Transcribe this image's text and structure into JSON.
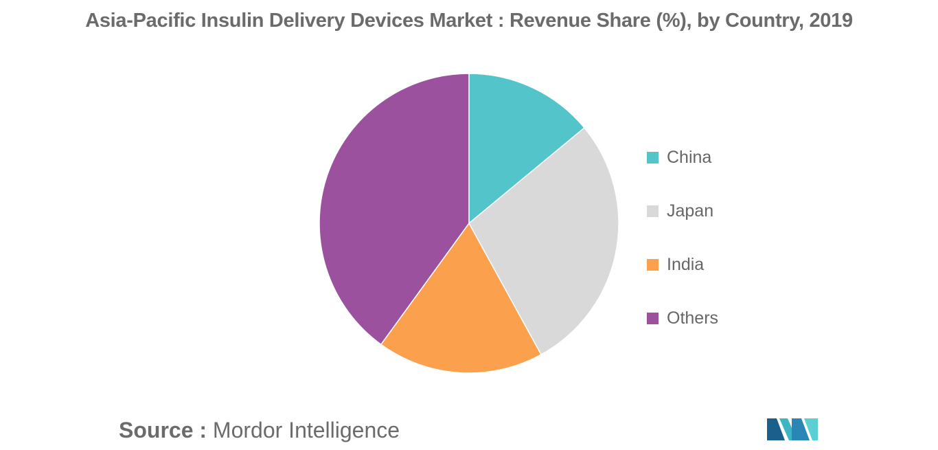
{
  "title": "Asia-Pacific Insulin Delivery Devices Market : Revenue Share (%), by Country, 2019",
  "source": {
    "label": "Source :",
    "text": "Mordor Intelligence"
  },
  "chart_data": {
    "type": "pie",
    "title": "Asia-Pacific Insulin Delivery Devices Market : Revenue Share (%), by Country, 2019",
    "categories": [
      "China",
      "Japan",
      "India",
      "Others"
    ],
    "values": [
      14,
      28,
      18,
      40
    ],
    "colors": [
      "#53c4c9",
      "#d9d9d9",
      "#fba04d",
      "#9b519d"
    ],
    "start_angle_deg": 0,
    "direction": "clockwise",
    "legend_position": "right"
  }
}
